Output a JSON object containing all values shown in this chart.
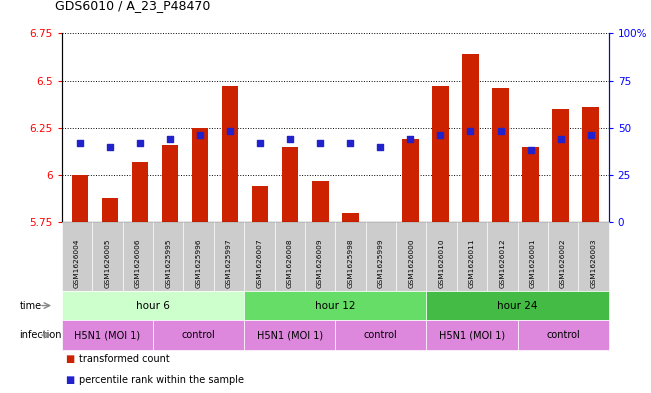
{
  "title": "GDS6010 / A_23_P48470",
  "samples": [
    "GSM1626004",
    "GSM1626005",
    "GSM1626006",
    "GSM1625995",
    "GSM1625996",
    "GSM1625997",
    "GSM1626007",
    "GSM1626008",
    "GSM1626009",
    "GSM1625998",
    "GSM1625999",
    "GSM1626000",
    "GSM1626010",
    "GSM1626011",
    "GSM1626012",
    "GSM1626001",
    "GSM1626002",
    "GSM1626003"
  ],
  "transformed_counts": [
    6.0,
    5.88,
    6.07,
    6.16,
    6.25,
    6.47,
    5.94,
    6.15,
    5.97,
    5.8,
    5.75,
    6.19,
    6.47,
    6.64,
    6.46,
    6.15,
    6.35,
    6.36
  ],
  "percentile_ranks": [
    42,
    40,
    42,
    44,
    46,
    48,
    42,
    44,
    42,
    42,
    40,
    44,
    46,
    48,
    48,
    38,
    44,
    46
  ],
  "ylim_left": [
    5.75,
    6.75
  ],
  "ylim_right": [
    0,
    100
  ],
  "yticks_left": [
    5.75,
    6.0,
    6.25,
    6.5,
    6.75
  ],
  "yticks_right": [
    0,
    25,
    50,
    75,
    100
  ],
  "ytick_labels_left": [
    "5.75",
    "6",
    "6.25",
    "6.5",
    "6.75"
  ],
  "ytick_labels_right": [
    "0",
    "25",
    "50",
    "75",
    "100%"
  ],
  "bar_color": "#cc2200",
  "dot_color": "#2222cc",
  "time_group_defs": [
    {
      "label": "hour 6",
      "start": 0,
      "end": 6,
      "color": "#ccffcc"
    },
    {
      "label": "hour 12",
      "start": 6,
      "end": 12,
      "color": "#66dd66"
    },
    {
      "label": "hour 24",
      "start": 12,
      "end": 18,
      "color": "#44bb44"
    }
  ],
  "infection_group_defs": [
    {
      "label": "H5N1 (MOI 1)",
      "start": 0,
      "end": 3,
      "color": "#dd88dd"
    },
    {
      "label": "control",
      "start": 3,
      "end": 6,
      "color": "#dd88dd"
    },
    {
      "label": "H5N1 (MOI 1)",
      "start": 6,
      "end": 9,
      "color": "#dd88dd"
    },
    {
      "label": "control",
      "start": 9,
      "end": 12,
      "color": "#dd88dd"
    },
    {
      "label": "H5N1 (MOI 1)",
      "start": 12,
      "end": 15,
      "color": "#dd88dd"
    },
    {
      "label": "control",
      "start": 15,
      "end": 18,
      "color": "#dd88dd"
    }
  ],
  "sample_cell_color": "#cccccc",
  "background_color": "#ffffff",
  "legend_items": [
    {
      "label": "transformed count",
      "color": "#cc2200"
    },
    {
      "label": "percentile rank within the sample",
      "color": "#2222cc"
    }
  ]
}
